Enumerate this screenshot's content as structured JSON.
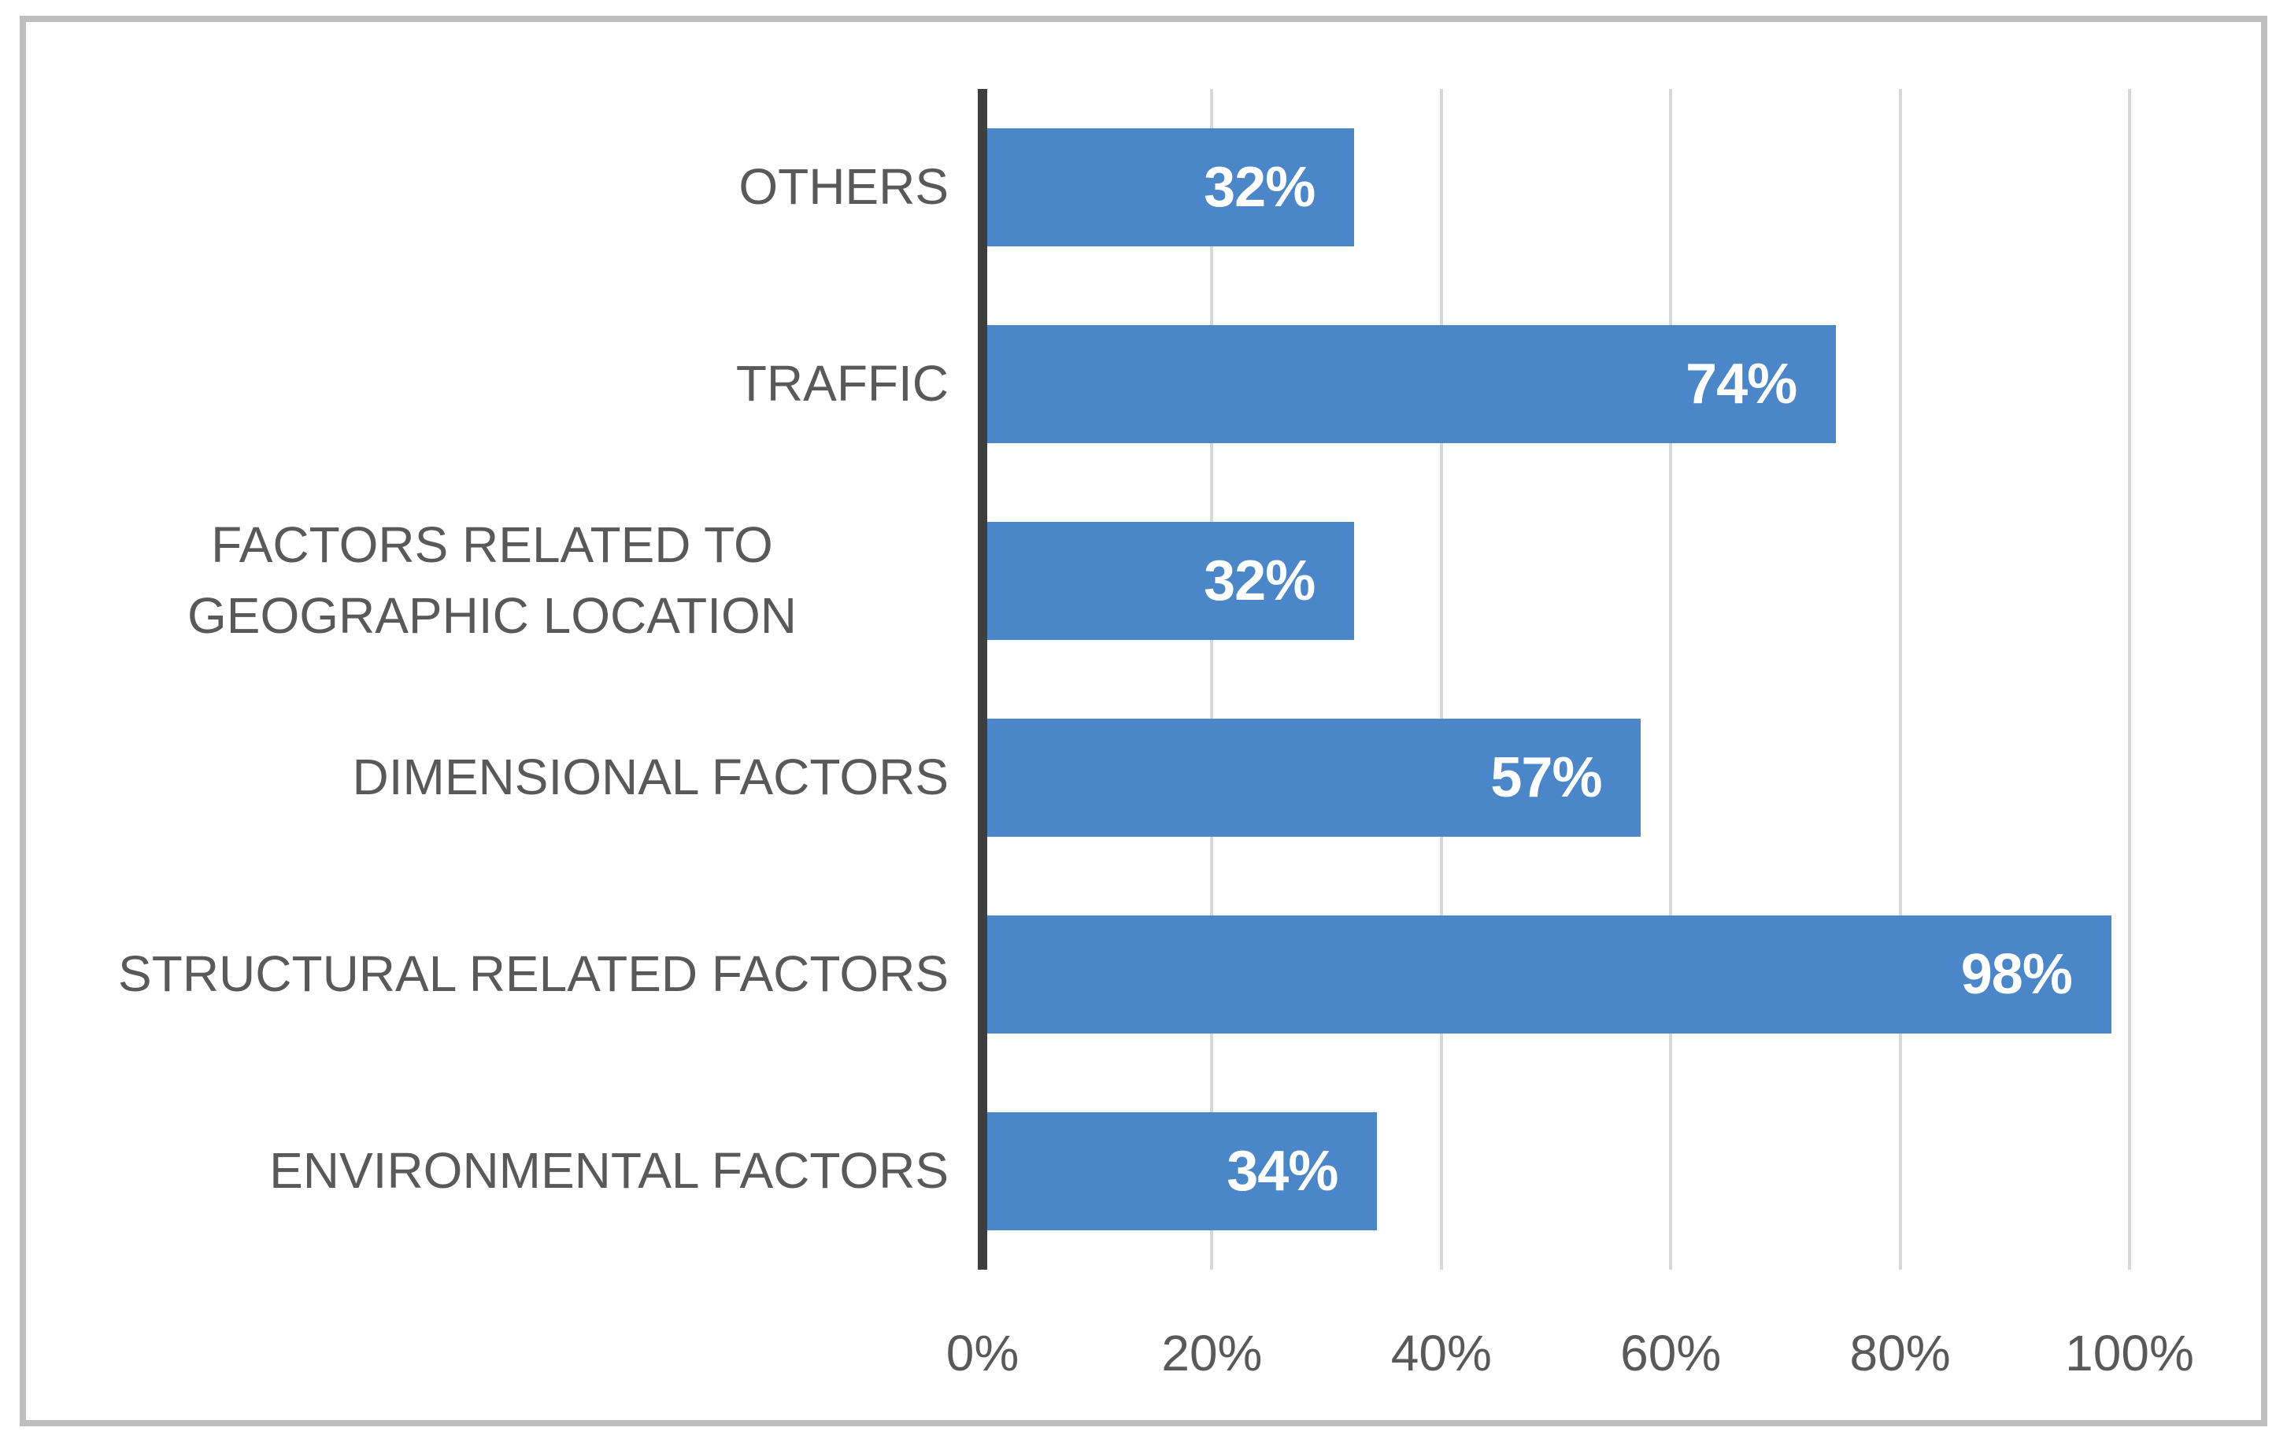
{
  "chart_data": {
    "type": "bar",
    "orientation": "horizontal",
    "title": "",
    "xlabel": "",
    "ylabel": "",
    "categories": [
      "OTHERS",
      "TRAFFIC",
      "FACTORS RELATED TO GEOGRAPHIC LOCATION",
      "DIMENSIONAL FACTORS",
      "STRUCTURAL RELATED FACTORS",
      "ENVIRONMENTAL FACTORS"
    ],
    "values": [
      32,
      74,
      32,
      57,
      98,
      34
    ],
    "value_labels": [
      "32%",
      "74%",
      "32%",
      "57%",
      "98%",
      "34%"
    ],
    "xlim": [
      0,
      100
    ],
    "x_ticks": [
      0,
      20,
      40,
      60,
      80,
      100
    ],
    "x_tick_labels": [
      "0%",
      "20%",
      "40%",
      "60%",
      "80%",
      "100%"
    ],
    "grid": true,
    "legend": false,
    "colors": {
      "bar": "#4a86c8",
      "value_label": "#ffffff",
      "category_label": "#595959",
      "tick_label": "#595959",
      "gridline": "#d8d8d8",
      "axis_line": "#3e3e3e",
      "frame_border": "#bfbfbf",
      "background": "#ffffff"
    }
  }
}
